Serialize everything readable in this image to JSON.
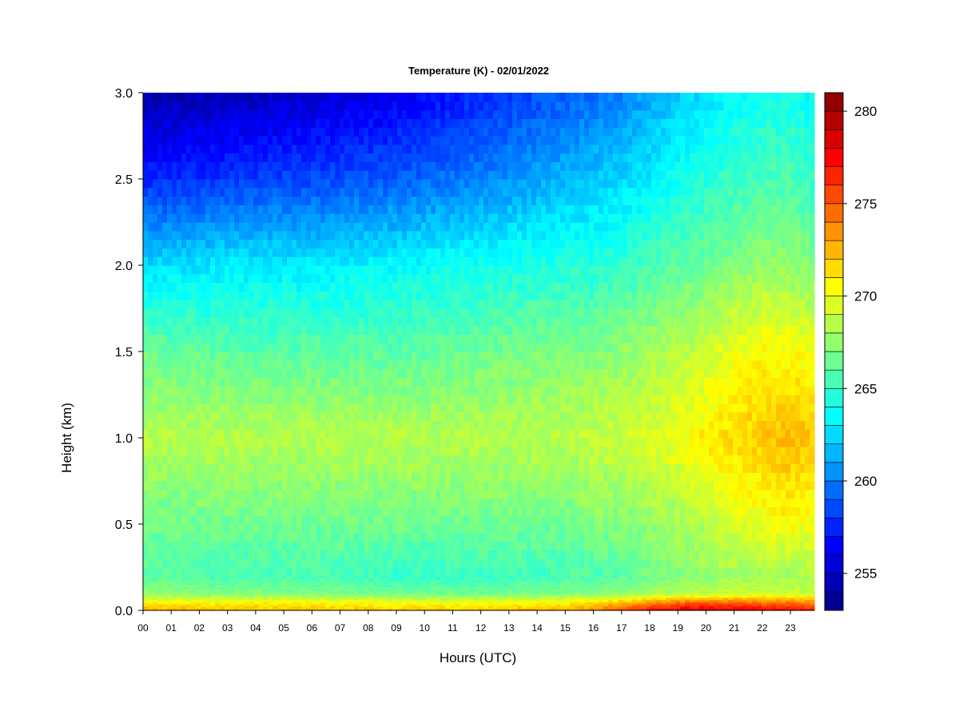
{
  "chart_data": {
    "type": "heatmap",
    "title": "Temperature (K) - 02/01/2022",
    "xlabel": "Hours (UTC)",
    "ylabel": "Height (km)",
    "x_ticks": [
      "00",
      "01",
      "02",
      "03",
      "04",
      "05",
      "06",
      "07",
      "08",
      "09",
      "10",
      "11",
      "12",
      "13",
      "14",
      "15",
      "16",
      "17",
      "18",
      "19",
      "20",
      "21",
      "22",
      "23"
    ],
    "xlim": [
      0,
      23.85
    ],
    "y_ticks": [
      "0.0",
      "0.5",
      "1.0",
      "1.5",
      "2.0",
      "2.5",
      "3.0"
    ],
    "ylim": [
      0,
      3.0
    ],
    "colorbar": {
      "range": [
        253,
        281
      ],
      "step": 1,
      "ticks": [
        "255",
        "260",
        "265",
        "270",
        "275",
        "280"
      ],
      "colormap": "jet"
    },
    "height_km": [
      0.0,
      0.05,
      0.1,
      0.2,
      0.5,
      1.0,
      1.5,
      2.0,
      2.5,
      3.0
    ],
    "hours": [
      0,
      3,
      6,
      9,
      12,
      15,
      16,
      17,
      18,
      19,
      20,
      21,
      22,
      23,
      23.85
    ],
    "temperature_k": [
      [
        273.0,
        272.5,
        272.5,
        272.0,
        272.0,
        273.0,
        274.0,
        276.0,
        277.5,
        278.5,
        279.0,
        278.5,
        278.0,
        277.5,
        277.0
      ],
      [
        270.5,
        270.5,
        270.5,
        270.0,
        270.0,
        270.5,
        271.0,
        272.0,
        273.0,
        274.0,
        274.5,
        274.5,
        274.0,
        274.0,
        273.5
      ],
      [
        267.5,
        267.0,
        267.0,
        266.5,
        266.5,
        267.0,
        267.0,
        267.5,
        268.0,
        268.5,
        268.5,
        269.0,
        269.0,
        269.0,
        269.0
      ],
      [
        266.0,
        265.5,
        265.5,
        265.0,
        265.0,
        265.5,
        265.5,
        266.0,
        266.5,
        267.0,
        267.5,
        268.0,
        268.0,
        268.0,
        268.0
      ],
      [
        266.5,
        266.5,
        266.5,
        266.5,
        266.5,
        266.5,
        267.0,
        267.0,
        267.5,
        268.0,
        268.5,
        269.5,
        270.0,
        270.5,
        270.0
      ],
      [
        268.5,
        268.5,
        268.5,
        268.5,
        268.5,
        268.5,
        269.0,
        269.0,
        269.5,
        270.0,
        271.0,
        271.5,
        272.0,
        272.5,
        272.0
      ],
      [
        266.5,
        266.0,
        266.0,
        266.0,
        266.5,
        267.0,
        267.0,
        267.5,
        268.0,
        268.5,
        269.0,
        270.0,
        270.5,
        270.5,
        270.0
      ],
      [
        262.5,
        263.0,
        263.0,
        263.5,
        264.0,
        264.5,
        264.5,
        265.0,
        265.5,
        266.0,
        266.5,
        267.0,
        267.5,
        267.5,
        267.0
      ],
      [
        257.5,
        258.0,
        258.5,
        259.0,
        260.0,
        261.5,
        262.0,
        262.5,
        263.0,
        264.0,
        264.5,
        265.0,
        265.5,
        265.5,
        265.0
      ],
      [
        254.0,
        254.5,
        255.0,
        256.0,
        257.5,
        259.0,
        259.5,
        260.0,
        261.0,
        262.0,
        262.5,
        263.5,
        264.0,
        264.0,
        263.5
      ]
    ]
  }
}
